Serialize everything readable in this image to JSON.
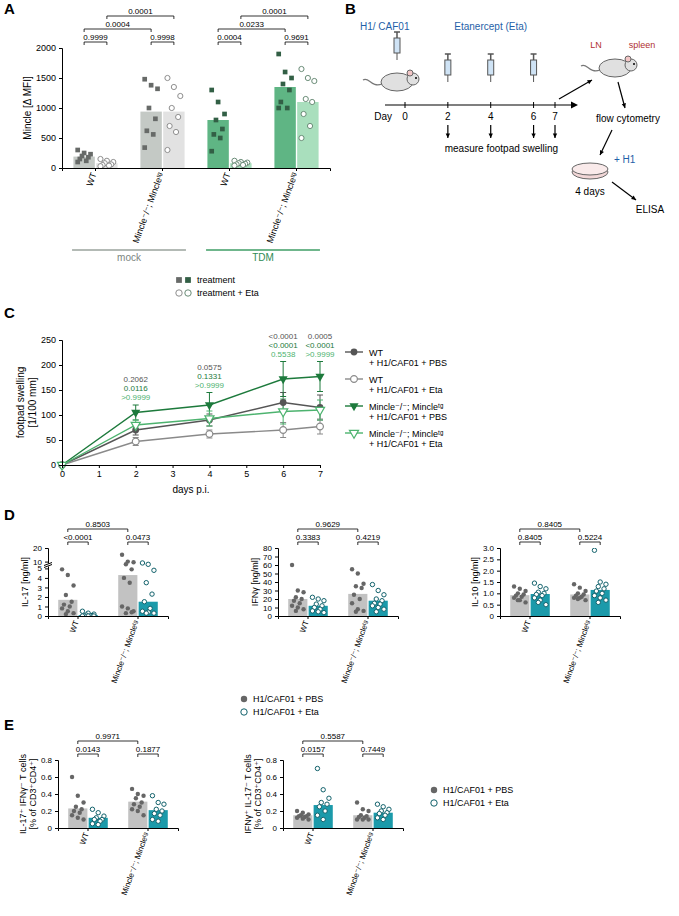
{
  "chart_data": [
    {
      "panel_label": "A",
      "type": "bar",
      "ylabel": "Mincle [Δ MFI]",
      "categories": [
        "WT",
        "Mincle⁻/⁻; Mincleᵗᵍ",
        "WT",
        "Mincle⁻/⁻; Mincleᵗᵍ"
      ],
      "group_labels": [
        "mock",
        "TDM"
      ],
      "ylim": [
        0,
        2000
      ],
      "yticks": [
        0,
        500,
        1000,
        1500,
        2000
      ],
      "legend": "bottom",
      "series": [
        {
          "name": "treatment",
          "marker": "square",
          "colors": [
            "#c4c9c5",
            "#c4c9c5",
            "#5fb584",
            "#5fb584"
          ],
          "values": [
            190,
            940,
            800,
            1350
          ],
          "points": [
            [
              300,
              250,
              230,
              200,
              180,
              150,
              120,
              100
            ],
            [
              1480,
              1380,
              1320,
              1000,
              820,
              620,
              560,
              340
            ],
            [
              1300,
              1100,
              900,
              800,
              650,
              560,
              500,
              280
            ],
            [
              1900,
              1600,
              1500,
              1400,
              1300,
              1100,
              1000,
              1000
            ]
          ]
        },
        {
          "name": "treatment + Eta",
          "marker": "circle-open",
          "colors": [
            "#e2e2e2",
            "#e2e2e2",
            "#a9dfbd",
            "#a9dfbd"
          ],
          "values": [
            80,
            940,
            80,
            1100
          ],
          "points": [
            [
              150,
              120,
              100,
              80,
              60,
              50,
              40,
              30
            ],
            [
              1500,
              1350,
              1200,
              1000,
              850,
              700,
              600,
              300
            ],
            [
              120,
              100,
              90,
              80,
              70,
              60,
              50,
              40
            ],
            [
              1650,
              1500,
              1450,
              1150,
              1100,
              900,
              700,
              500
            ]
          ]
        }
      ],
      "annotations": [
        "0.0001",
        "0.0004",
        "0.9999",
        "0.9998",
        "0.0001",
        "0.0233",
        "0.0004",
        "0.9691"
      ]
    },
    {
      "panel_label": "C",
      "type": "line",
      "xlabel": "days p.i.",
      "ylabel": "footpad swelling [1/100 mm]",
      "x": [
        0,
        2,
        4,
        6,
        7
      ],
      "xlim": [
        0,
        7
      ],
      "xticks": [
        0,
        1,
        2,
        3,
        4,
        5,
        6,
        7
      ],
      "ylim": [
        0,
        250
      ],
      "yticks": [
        0,
        50,
        100,
        150,
        200,
        250
      ],
      "legend": "right",
      "series": [
        {
          "name": "WT + H1/CAF01 + PBS",
          "color": "#555555",
          "marker": "circle",
          "line_style": "solid",
          "values": [
            0,
            70,
            90,
            125,
            115
          ],
          "errors": [
            0,
            10,
            12,
            20,
            25
          ]
        },
        {
          "name": "WT + H1/CAF01 + Eta",
          "color": "#8a8a8a",
          "marker": "circle-open",
          "line_style": "solid",
          "values": [
            0,
            47,
            62,
            70,
            77
          ],
          "errors": [
            0,
            8,
            8,
            15,
            15
          ]
        },
        {
          "name": "Mincle⁻/⁻; Mincleᵗᵍ + H1/CAF01 + PBS",
          "color": "#1d7a3c",
          "marker": "triangle-down",
          "line_style": "solid",
          "values": [
            0,
            105,
            120,
            172,
            177
          ],
          "errors": [
            0,
            15,
            25,
            35,
            30
          ]
        },
        {
          "name": "Mincle⁻/⁻; Mincleᵗᵍ + H1/CAF01 + Eta",
          "color": "#4db36f",
          "marker": "triangle-down-open",
          "line_style": "solid",
          "values": [
            0,
            80,
            93,
            107,
            110
          ],
          "errors": [
            0,
            10,
            15,
            25,
            20
          ]
        }
      ],
      "annotations": [
        {
          "x": 2,
          "texts": [
            "0.2062",
            "0.0116",
            ">0.9999"
          ]
        },
        {
          "x": 4,
          "texts": [
            "0.0575",
            "0.1331",
            ">0.9999"
          ]
        },
        {
          "x": 6,
          "texts": [
            "<0.0001",
            "<0.0001",
            "0.5538"
          ]
        },
        {
          "x": 7,
          "texts": [
            "0.0005",
            "<0.0001",
            ">0.9999"
          ]
        }
      ]
    },
    {
      "panel_label": "D",
      "type": "bar",
      "ylabel": "IL-17 [ng/ml]",
      "categories": [
        "WT",
        "Mincle⁻/⁻; Mincleᵗᵍ"
      ],
      "ylim": [
        0,
        20
      ],
      "yticks": [
        0,
        1,
        2,
        3,
        4,
        5,
        10,
        20
      ],
      "series": [
        {
          "name": "H1/CAF01 + PBS",
          "color": "#c2c2c2",
          "marker": "circle",
          "values": [
            1.7,
            4.3
          ],
          "points": [
            [
              4.9,
              4.3,
              3.2,
              2.2,
              1.5,
              1.2,
              1.0,
              0.8,
              0.5,
              0.3,
              0.2
            ],
            [
              15,
              10,
              9.5,
              8,
              4.9,
              4,
              3.5,
              1,
              0.8,
              0.5,
              0.3,
              0.4
            ]
          ]
        },
        {
          "name": "H1/CAF01 + Eta",
          "color": "#1b9aaa",
          "marker": "circle-open",
          "values": [
            0.1,
            1.5
          ],
          "points": [
            [
              0.5,
              0.3,
              0.2,
              0.1,
              0.05,
              0,
              0,
              0,
              0,
              0
            ],
            [
              9,
              8,
              4.8,
              3.5,
              2.3,
              1.5,
              0.8,
              0.5,
              0.4,
              0.3,
              0.3
            ]
          ]
        }
      ],
      "annotations": [
        "0.8503",
        "<0.0001",
        "0.0473"
      ]
    },
    {
      "type": "bar",
      "ylabel": "IFNγ [ng/ml]",
      "categories": [
        "WT",
        "Mincle⁻/⁻; Mincleᵗᵍ"
      ],
      "ylim": [
        0,
        80
      ],
      "yticks": [
        0,
        10,
        20,
        30,
        40,
        50,
        60,
        70,
        80
      ],
      "legend": "bottom",
      "series": [
        {
          "name": "H1/CAF01 + PBS",
          "color": "#c2c2c2",
          "marker": "circle",
          "values": [
            20,
            26
          ],
          "points": [
            [
              60,
              30,
              28,
              22,
              20,
              18,
              15,
              12,
              10,
              8,
              6
            ],
            [
              55,
              50,
              38,
              35,
              33,
              25,
              20,
              15,
              8,
              6,
              5
            ]
          ]
        },
        {
          "name": "H1/CAF01 + Eta",
          "color": "#1b9aaa",
          "marker": "circle-open",
          "values": [
            12,
            18
          ],
          "points": [
            [
              22,
              20,
              18,
              14,
              12,
              10,
              8,
              6,
              5,
              4
            ],
            [
              37,
              30,
              25,
              20,
              18,
              15,
              14,
              12,
              10,
              8,
              5
            ]
          ]
        }
      ],
      "annotations": [
        "0.9629",
        "0.3383",
        "0.4219"
      ]
    },
    {
      "type": "bar",
      "ylabel": "IL-10 [ng/ml]",
      "categories": [
        "WT",
        "Mincle⁻/⁻; Mincleᵗᵍ"
      ],
      "ylim": [
        0,
        3
      ],
      "yticks": [
        0,
        0.5,
        {
          "value": 1,
          "label": "1.0"
        },
        1.5,
        {
          "value": 2,
          "label": "2.0"
        },
        2.5,
        {
          "value": 3,
          "label": "3.0"
        }
      ],
      "series": [
        {
          "name": "H1/CAF01 + PBS",
          "color": "#c2c2c2",
          "marker": "circle",
          "values": [
            0.92,
            0.95
          ],
          "points": [
            [
              1.3,
              1.2,
              1.1,
              1.0,
              0.95,
              0.9,
              0.85,
              0.8,
              0.7,
              0.6,
              0.7
            ],
            [
              1.4,
              1.25,
              1.1,
              1.0,
              0.95,
              0.9,
              0.85,
              0.8,
              0.8,
              0.7,
              0.75
            ]
          ]
        },
        {
          "name": "H1/CAF01 + Eta",
          "color": "#1b9aaa",
          "marker": "circle-open",
          "values": [
            0.97,
            1.15
          ],
          "points": [
            [
              1.45,
              1.3,
              1.2,
              1.05,
              1.0,
              0.95,
              0.9,
              0.8,
              0.7,
              0.5,
              0.6
            ],
            [
              2.9,
              1.5,
              1.4,
              1.3,
              1.2,
              1.1,
              1.0,
              0.9,
              0.8,
              0.7,
              0.6
            ]
          ]
        }
      ],
      "annotations": [
        "0.8405",
        "0.8405",
        "0.5224"
      ]
    },
    {
      "panel_label": "E",
      "type": "bar",
      "ylabel": "IL-17⁺ IFNγ⁻ T cells [% of CD3⁺CD4⁺]",
      "categories": [
        "WT",
        "Mincle⁻/⁻; Mincleᵗᵍ"
      ],
      "ylim": [
        0,
        0.8
      ],
      "yticks": [
        0,
        0.2,
        0.4,
        0.6,
        0.8
      ],
      "series": [
        {
          "name": "H1/CAF01 + PBS",
          "color": "#c2c2c2",
          "marker": "circle",
          "values": [
            0.23,
            0.31
          ],
          "points": [
            [
              0.6,
              0.38,
              0.3,
              0.25,
              0.22,
              0.2,
              0.18,
              0.15,
              0.12,
              0.1
            ],
            [
              0.46,
              0.4,
              0.38,
              0.35,
              0.3,
              0.28,
              0.25,
              0.22,
              0.2,
              0.15
            ]
          ]
        },
        {
          "name": "H1/CAF01 + Eta",
          "color": "#1b9aaa",
          "marker": "circle-open",
          "values": [
            0.12,
            0.21
          ],
          "points": [
            [
              0.22,
              0.18,
              0.14,
              0.12,
              0.1,
              0.1,
              0.08,
              0.05,
              0.04
            ],
            [
              0.38,
              0.3,
              0.28,
              0.22,
              0.2,
              0.17,
              0.15,
              0.1,
              0.08
            ]
          ]
        }
      ],
      "annotations": [
        "0.9971",
        "0.0143",
        "0.1877"
      ]
    },
    {
      "type": "bar",
      "ylabel": "IFNγ⁺ IL-17⁻ T cells [% of CD3⁺CD4⁺]",
      "categories": [
        "WT",
        "Mincle⁻/⁻; Mincleᵗᵍ"
      ],
      "ylim": [
        0,
        0.8
      ],
      "yticks": [
        0,
        0.2,
        0.4,
        0.6,
        0.8
      ],
      "legend": "right",
      "series": [
        {
          "name": "H1/CAF01 + PBS",
          "color": "#c2c2c2",
          "marker": "circle",
          "values": [
            0.15,
            0.15
          ],
          "points": [
            [
              0.2,
              0.18,
              0.16,
              0.15,
              0.14,
              0.14,
              0.13,
              0.12,
              0.11,
              0.1
            ],
            [
              0.3,
              0.22,
              0.2,
              0.15,
              0.14,
              0.13,
              0.12,
              0.1,
              0.1,
              0.1
            ]
          ]
        },
        {
          "name": "H1/CAF01 + Eta",
          "color": "#1b9aaa",
          "marker": "circle-open",
          "values": [
            0.27,
            0.18
          ],
          "points": [
            [
              0.7,
              0.45,
              0.35,
              0.3,
              0.28,
              0.25,
              0.2,
              0.15,
              0.1
            ],
            [
              0.28,
              0.25,
              0.22,
              0.2,
              0.18,
              0.17,
              0.15,
              0.12,
              0.1
            ]
          ]
        }
      ],
      "annotations": [
        "0.5587",
        "0.0157",
        "0.7449"
      ]
    }
  ],
  "diagram": {
    "panel_label": "B",
    "immunization": "H1/ CAF01",
    "treatment": "Etanercept (Eta)",
    "timeline": {
      "label": "Day",
      "days": [
        0,
        2,
        4,
        6,
        7
      ]
    },
    "measurement": "measure footpad swelling",
    "organs": [
      "LN",
      "spleen"
    ],
    "readout_1": "flow cytometry",
    "restimulation": "+ H1",
    "culture": "4 days",
    "readout_2": "ELISA"
  }
}
